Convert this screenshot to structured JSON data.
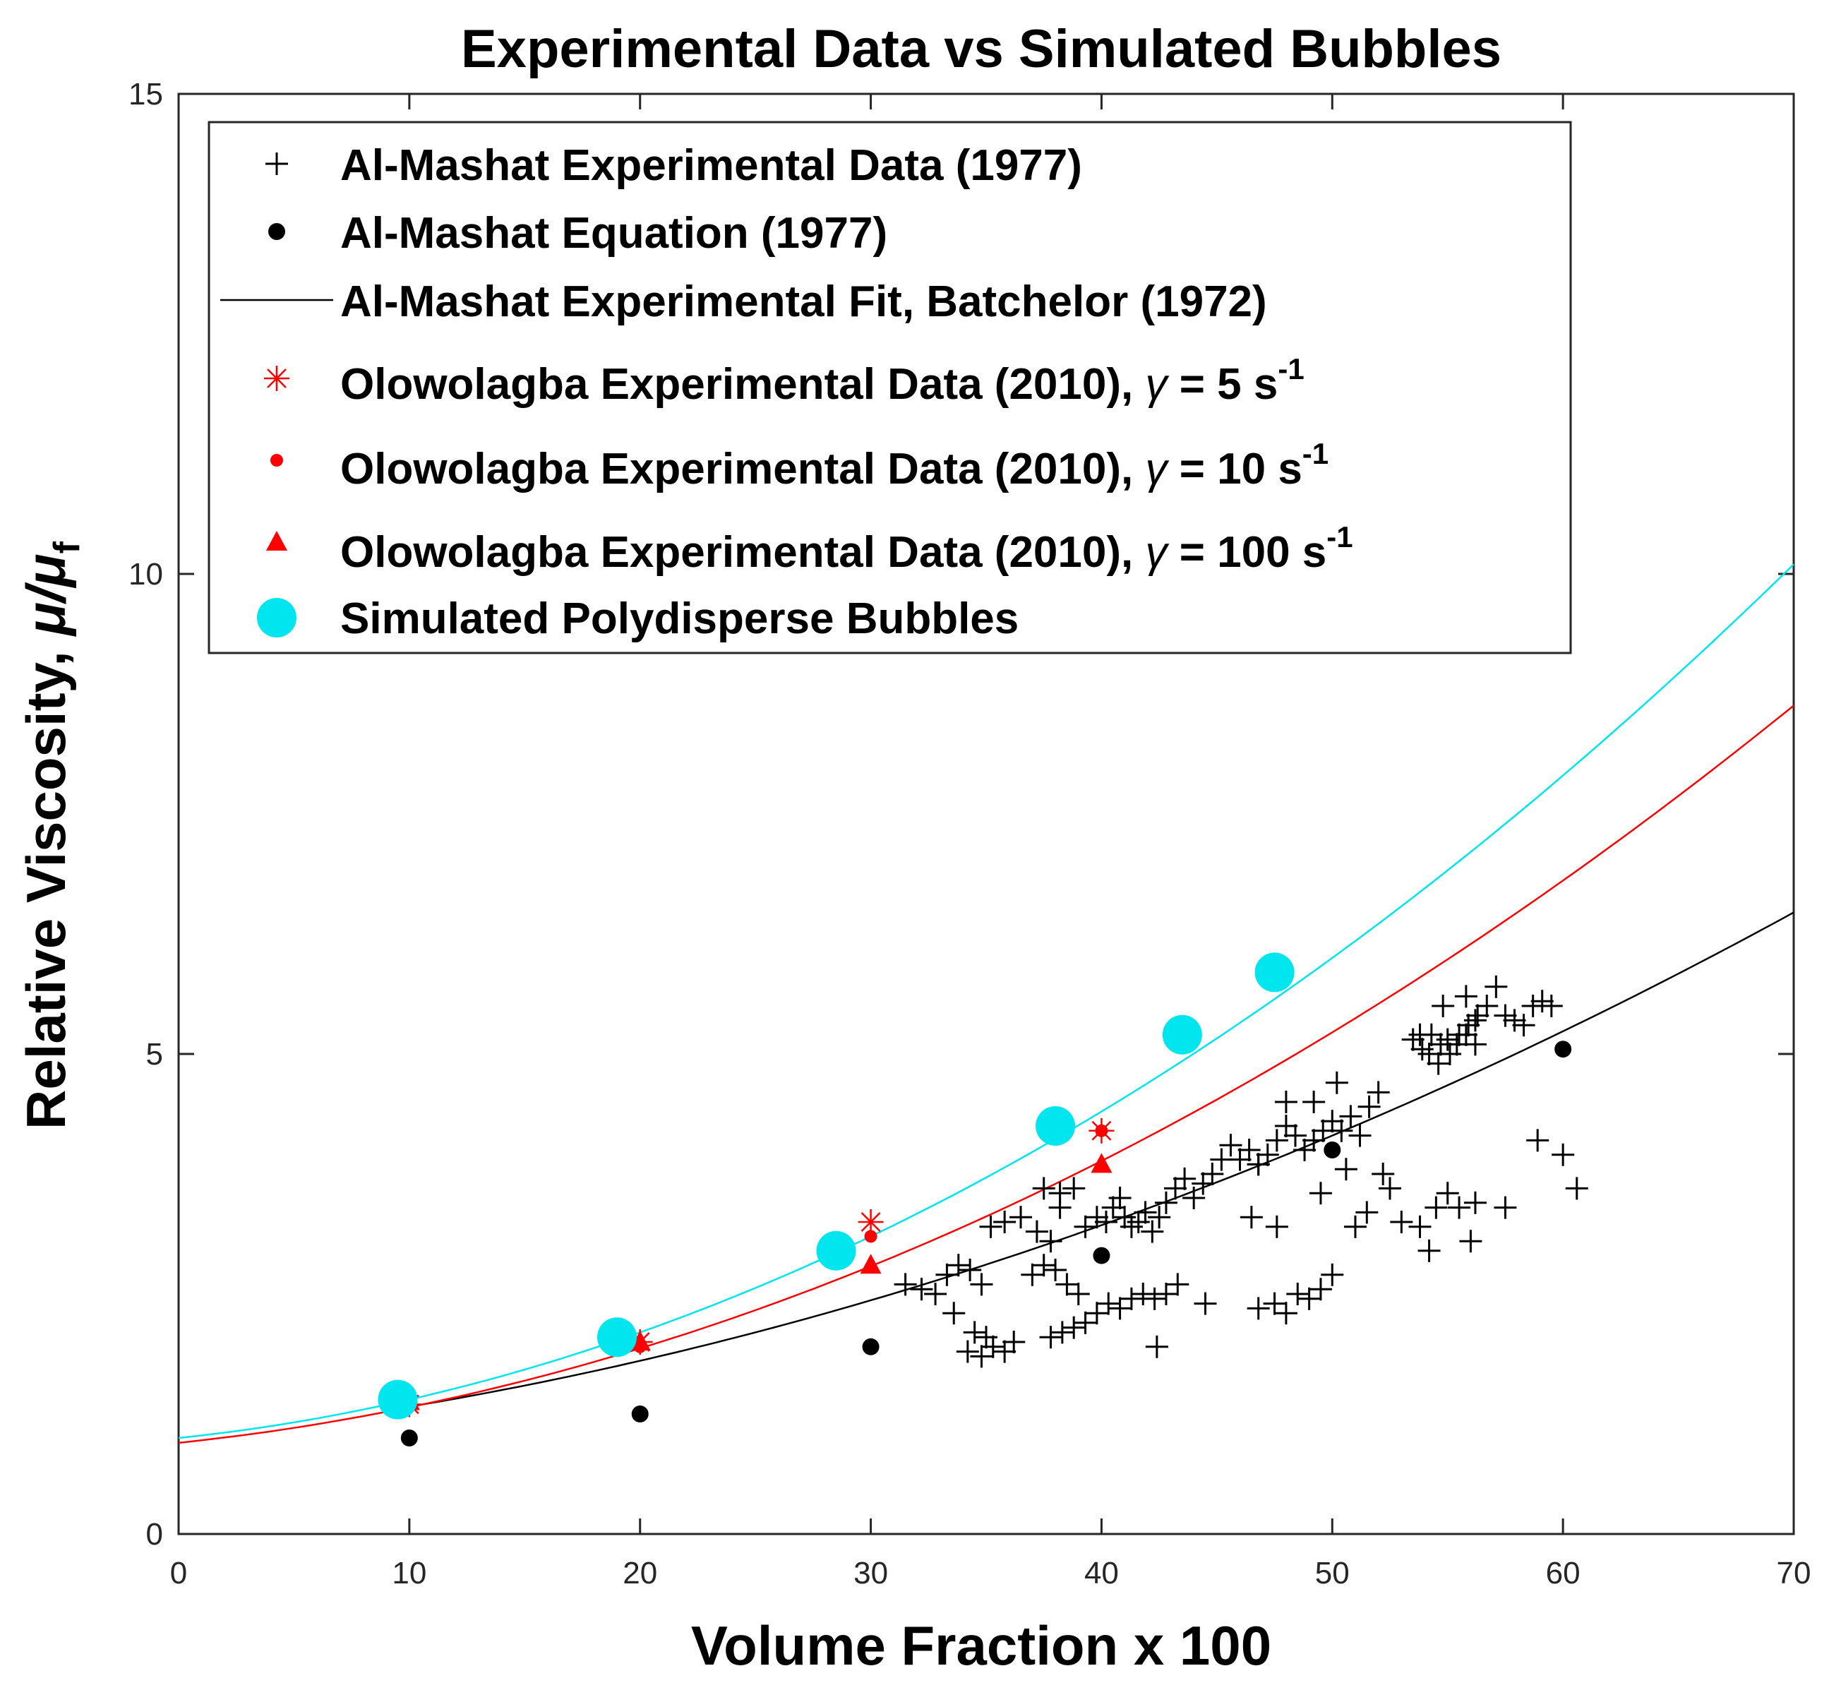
{
  "chart_data": {
    "type": "scatter",
    "title": "Experimental Data vs Simulated Bubbles",
    "xlabel": "Volume Fraction x 100",
    "ylabel": "Relative Viscosity,",
    "ylabel_symbol": "μ/μ",
    "ylabel_subscript": "f",
    "xlim": [
      0,
      70
    ],
    "ylim": [
      0,
      15
    ],
    "xticks": [
      0,
      10,
      20,
      30,
      40,
      50,
      60,
      70
    ],
    "yticks": [
      0,
      5,
      10,
      15
    ],
    "xtick_labels": [
      "0",
      "10",
      "20",
      "30",
      "40",
      "50",
      "60",
      "70"
    ],
    "ytick_labels": [
      "0",
      "5",
      "10",
      "15"
    ],
    "legend_position": "top-left",
    "colors": {
      "black": "#000000",
      "red": "#ff0000",
      "cyan": "#00e5ee",
      "axis": "#262626"
    },
    "legend": [
      {
        "key": "almashat_data",
        "text": "Al-Mashat Experimental Data (1977)",
        "marker": "plus",
        "color": "#000000"
      },
      {
        "key": "almashat_eq",
        "text": "Al-Mashat Equation (1977)",
        "marker": "dot",
        "color": "#000000"
      },
      {
        "key": "almashat_fit",
        "text": "Al-Mashat Experimental Fit, Batchelor (1972)",
        "marker": "line",
        "color": "#000000"
      },
      {
        "key": "olow5",
        "text": "Olowolagba Experimental Data (2010), ",
        "gamma": "γ",
        "value": " = 5 s",
        "sup": "-1",
        "marker": "asterisk",
        "color": "#ff0000"
      },
      {
        "key": "olow10",
        "text": "Olowolagba Experimental Data (2010), ",
        "gamma": "γ",
        "value": " = 10 s",
        "sup": "-1",
        "marker": "dot-small",
        "color": "#ff0000"
      },
      {
        "key": "olow100",
        "text": "Olowolagba Experimental Data (2010), ",
        "gamma": "γ",
        "value": " = 100 s",
        "sup": "-1",
        "marker": "triangle",
        "color": "#ff0000"
      },
      {
        "key": "sim",
        "text": "Simulated Polydisperse Bubbles",
        "marker": "circle-large",
        "color": "#00e5ee"
      }
    ],
    "series": [
      {
        "name": "Al-Mashat Equation (1977)",
        "marker": "dot",
        "color": "#000000",
        "x": [
          10,
          20,
          30,
          40,
          50,
          60
        ],
        "y": [
          1.0,
          1.25,
          1.95,
          2.9,
          4.0,
          5.05
        ]
      },
      {
        "name": "Olowolagba Experimental Data (2010), gamma = 5 s-1",
        "marker": "asterisk",
        "color": "#ff0000",
        "x": [
          10,
          20,
          30,
          40
        ],
        "y": [
          1.35,
          2.0,
          3.25,
          4.2
        ]
      },
      {
        "name": "Olowolagba Experimental Data (2010), gamma = 10 s-1",
        "marker": "dot-small",
        "color": "#ff0000",
        "x": [
          10,
          20,
          30,
          40
        ],
        "y": [
          1.35,
          1.95,
          3.1,
          4.2
        ]
      },
      {
        "name": "Olowolagba Experimental Data (2010), gamma = 100 s-1",
        "marker": "triangle",
        "color": "#ff0000",
        "x": [
          10,
          20,
          30,
          40
        ],
        "y": [
          1.38,
          2.0,
          2.8,
          3.85
        ]
      },
      {
        "name": "Simulated Polydisperse Bubbles",
        "marker": "circle-large",
        "color": "#00e5ee",
        "x": [
          9.5,
          19,
          28.5,
          38,
          43.5,
          47.5
        ],
        "y": [
          1.4,
          2.05,
          2.95,
          4.25,
          5.2,
          5.85
        ]
      }
    ],
    "scatter_plus": {
      "name": "Al-Mashat Experimental Data (1977)",
      "color": "#000000",
      "points": [
        [
          31.5,
          2.6
        ],
        [
          32.2,
          2.55
        ],
        [
          32.8,
          2.5
        ],
        [
          33.3,
          2.7
        ],
        [
          33.8,
          2.8
        ],
        [
          34.3,
          2.75
        ],
        [
          34.8,
          2.6
        ],
        [
          33.6,
          2.3
        ],
        [
          34.2,
          1.9
        ],
        [
          34.8,
          1.85
        ],
        [
          35.3,
          1.95
        ],
        [
          35.8,
          1.9
        ],
        [
          34.5,
          2.1
        ],
        [
          35.0,
          2.05
        ],
        [
          36.2,
          2.0
        ],
        [
          35.2,
          3.2
        ],
        [
          35.8,
          3.25
        ],
        [
          36.5,
          3.3
        ],
        [
          37.2,
          3.15
        ],
        [
          37.8,
          3.05
        ],
        [
          38.2,
          3.4
        ],
        [
          37.5,
          3.6
        ],
        [
          37.0,
          2.7
        ],
        [
          37.5,
          2.8
        ],
        [
          38.0,
          2.75
        ],
        [
          38.5,
          2.6
        ],
        [
          39.0,
          2.5
        ],
        [
          37.8,
          2.05
        ],
        [
          38.3,
          2.1
        ],
        [
          38.8,
          2.15
        ],
        [
          39.3,
          2.2
        ],
        [
          39.8,
          2.3
        ],
        [
          40.3,
          2.4
        ],
        [
          40.8,
          2.35
        ],
        [
          41.3,
          2.45
        ],
        [
          41.8,
          2.5
        ],
        [
          42.3,
          2.45
        ],
        [
          42.8,
          2.5
        ],
        [
          43.3,
          2.6
        ],
        [
          44.5,
          2.4
        ],
        [
          42.4,
          1.95
        ],
        [
          38.2,
          3.55
        ],
        [
          38.8,
          3.6
        ],
        [
          39.3,
          3.2
        ],
        [
          39.8,
          3.3
        ],
        [
          40.2,
          3.25
        ],
        [
          40.5,
          3.4
        ],
        [
          40.8,
          3.5
        ],
        [
          41.0,
          3.3
        ],
        [
          41.3,
          3.2
        ],
        [
          41.6,
          3.25
        ],
        [
          41.9,
          3.35
        ],
        [
          42.2,
          3.15
        ],
        [
          42.5,
          3.3
        ],
        [
          42.8,
          3.45
        ],
        [
          43.2,
          3.6
        ],
        [
          43.6,
          3.7
        ],
        [
          44.0,
          3.5
        ],
        [
          44.4,
          3.65
        ],
        [
          44.8,
          3.75
        ],
        [
          45.2,
          3.9
        ],
        [
          45.6,
          4.05
        ],
        [
          46.0,
          3.9
        ],
        [
          46.4,
          4.0
        ],
        [
          46.8,
          3.85
        ],
        [
          47.2,
          3.95
        ],
        [
          47.6,
          4.1
        ],
        [
          48.0,
          4.25
        ],
        [
          48.4,
          4.15
        ],
        [
          48.8,
          4.0
        ],
        [
          49.2,
          4.1
        ],
        [
          49.6,
          4.2
        ],
        [
          50.0,
          4.3
        ],
        [
          50.4,
          4.2
        ],
        [
          50.8,
          4.35
        ],
        [
          51.2,
          4.15
        ],
        [
          51.6,
          4.45
        ],
        [
          52.0,
          4.6
        ],
        [
          48.0,
          4.5
        ],
        [
          49.2,
          4.5
        ],
        [
          50.2,
          4.7
        ],
        [
          50.6,
          3.8
        ],
        [
          49.5,
          3.55
        ],
        [
          46.5,
          3.3
        ],
        [
          47.6,
          3.2
        ],
        [
          51.0,
          3.2
        ],
        [
          51.5,
          3.35
        ],
        [
          52.5,
          3.6
        ],
        [
          53.0,
          3.25
        ],
        [
          53.8,
          3.2
        ],
        [
          54.2,
          2.95
        ],
        [
          54.5,
          3.4
        ],
        [
          55.0,
          3.55
        ],
        [
          55.5,
          3.4
        ],
        [
          56.2,
          3.45
        ],
        [
          56.0,
          3.05
        ],
        [
          57.5,
          3.4
        ],
        [
          46.8,
          2.35
        ],
        [
          47.5,
          2.4
        ],
        [
          48.0,
          2.3
        ],
        [
          48.5,
          2.5
        ],
        [
          49.0,
          2.45
        ],
        [
          49.5,
          2.55
        ],
        [
          50.0,
          2.7
        ],
        [
          46.8,
          3.85
        ],
        [
          52.2,
          3.75
        ],
        [
          53.5,
          5.15
        ],
        [
          53.9,
          5.05
        ],
        [
          54.3,
          5.2
        ],
        [
          54.7,
          5.1
        ],
        [
          55.1,
          5.0
        ],
        [
          55.5,
          5.2
        ],
        [
          55.9,
          5.3
        ],
        [
          56.3,
          5.4
        ],
        [
          56.7,
          5.5
        ],
        [
          57.1,
          5.7
        ],
        [
          57.5,
          5.4
        ],
        [
          57.9,
          5.35
        ],
        [
          58.3,
          5.3
        ],
        [
          58.7,
          5.5
        ],
        [
          59.1,
          5.55
        ],
        [
          59.5,
          5.5
        ],
        [
          54.8,
          5.5
        ],
        [
          55.8,
          5.6
        ],
        [
          56.2,
          5.35
        ],
        [
          54.6,
          4.9
        ],
        [
          55.0,
          5.15
        ],
        [
          55.4,
          5.1
        ],
        [
          55.8,
          5.2
        ],
        [
          56.2,
          5.1
        ],
        [
          53.8,
          5.2
        ],
        [
          54.2,
          5.0
        ],
        [
          58.9,
          4.1
        ],
        [
          60.0,
          3.95
        ],
        [
          60.6,
          3.6
        ]
      ]
    },
    "curves": [
      {
        "name": "Al-Mashat Experimental Fit, Batchelor (1972)",
        "color": "#000000",
        "x_range": [
          10,
          70
        ],
        "coef": [
          1.0,
          2.5,
          7.6
        ]
      },
      {
        "name": "red fit",
        "color": "#ff0000",
        "x_range": [
          0,
          70
        ],
        "coef": [
          0.95,
          2.5,
          12.1
        ]
      },
      {
        "name": "cyan fit",
        "color": "#00e5ee",
        "x_range": [
          0,
          70
        ],
        "coef": [
          1.0,
          2.5,
          15.0
        ]
      }
    ]
  }
}
